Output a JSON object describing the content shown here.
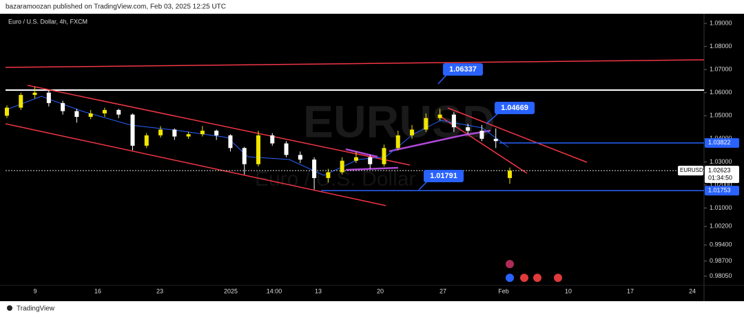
{
  "chart_data": {
    "type": "candlestick",
    "header": "bazaramoozan published on TradingView.com, Feb 03, 2025 12:25 UTC",
    "title": "Euro / U.S. Dollar, 4h, FXCM",
    "watermark": "EURUSD",
    "watermark_subtitle": "Euro / U.S. Dollar",
    "footer": "TradingView",
    "up_color": "#f2e600",
    "down_color": "#ffffff",
    "ylim": [
      0.9735,
      1.0942
    ],
    "yticks": [
      {
        "value": 1.09,
        "label": "1.09000"
      },
      {
        "value": 1.08,
        "label": "1.08000"
      },
      {
        "value": 1.07,
        "label": "1.07000"
      },
      {
        "value": 1.06,
        "label": "1.06000"
      },
      {
        "value": 1.05,
        "label": "1.05000"
      },
      {
        "value": 1.04,
        "label": "1.04000"
      },
      {
        "value": 1.03,
        "label": "1.03000"
      },
      {
        "value": 1.02,
        "label": "1.02000"
      },
      {
        "value": 1.01,
        "label": "1.01000"
      },
      {
        "value": 1.002,
        "label": "1.00200"
      },
      {
        "value": 0.994,
        "label": "0.99400"
      },
      {
        "value": 0.987,
        "label": "0.98700"
      },
      {
        "value": 0.9805,
        "label": "0.98050"
      }
    ],
    "x_labels": [
      "9",
      "16",
      "23",
      "2025",
      "14:00",
      "13",
      "20",
      "27",
      "Feb",
      "10",
      "17",
      "24"
    ],
    "candles": [
      [
        1.05,
        1.0545,
        1.049,
        1.0535
      ],
      [
        1.0535,
        1.06,
        1.0525,
        1.059
      ],
      [
        1.059,
        1.0625,
        1.0575,
        1.06
      ],
      [
        1.06,
        1.061,
        1.054,
        1.0555
      ],
      [
        1.0555,
        1.0565,
        1.0505,
        1.052
      ],
      [
        1.052,
        1.053,
        1.047,
        1.0495
      ],
      [
        1.0495,
        1.0525,
        1.0485,
        1.051
      ],
      [
        1.051,
        1.0535,
        1.0495,
        1.0525
      ],
      [
        1.0525,
        1.053,
        1.049,
        1.0505
      ],
      [
        1.0505,
        1.051,
        1.035,
        1.037
      ],
      [
        1.037,
        1.0425,
        1.036,
        1.0415
      ],
      [
        1.0415,
        1.0455,
        1.0405,
        1.044
      ],
      [
        1.044,
        1.0445,
        1.0395,
        1.041
      ],
      [
        1.041,
        1.043,
        1.04,
        1.042
      ],
      [
        1.042,
        1.0455,
        1.041,
        1.0435
      ],
      [
        1.0435,
        1.044,
        1.0395,
        1.0415
      ],
      [
        1.0415,
        1.042,
        1.0345,
        1.036
      ],
      [
        1.036,
        1.0365,
        1.0245,
        1.029
      ],
      [
        1.029,
        1.0435,
        1.028,
        1.0415
      ],
      [
        1.0415,
        1.0425,
        1.037,
        1.038
      ],
      [
        1.038,
        1.039,
        1.032,
        1.033
      ],
      [
        1.033,
        1.0345,
        1.0295,
        1.031
      ],
      [
        1.031,
        1.032,
        1.018,
        1.023
      ],
      [
        1.023,
        1.027,
        1.021,
        1.0255
      ],
      [
        1.0255,
        1.032,
        1.0245,
        1.0305
      ],
      [
        1.0305,
        1.0345,
        1.0295,
        1.032
      ],
      [
        1.032,
        1.033,
        1.027,
        1.029
      ],
      [
        1.029,
        1.0375,
        1.028,
        1.036
      ],
      [
        1.036,
        1.0435,
        1.035,
        1.0415
      ],
      [
        1.0415,
        1.046,
        1.04,
        1.044
      ],
      [
        1.044,
        1.051,
        1.043,
        1.049
      ],
      [
        1.049,
        1.053,
        1.048,
        1.0505
      ],
      [
        1.0505,
        1.0515,
        1.043,
        1.045
      ],
      [
        1.045,
        1.0465,
        1.042,
        1.0435
      ],
      [
        1.0435,
        1.046,
        1.039,
        1.04
      ],
      [
        1.04,
        1.0445,
        1.036,
        1.039
      ],
      [
        1.023,
        1.0275,
        1.0205,
        1.0262
      ]
    ],
    "price_tags": [
      {
        "value": 1.03822,
        "label": "1.03822",
        "color": "#2962ff"
      },
      {
        "value": 1.01753,
        "label": "1.01753",
        "color": "#2962ff"
      }
    ],
    "last_price": {
      "value": 1.02623,
      "label": "1.02623",
      "countdown": "01:34:50",
      "symbol": "EURUSD"
    },
    "callouts": [
      "1.06337",
      "1.04669",
      "1.01791"
    ]
  }
}
